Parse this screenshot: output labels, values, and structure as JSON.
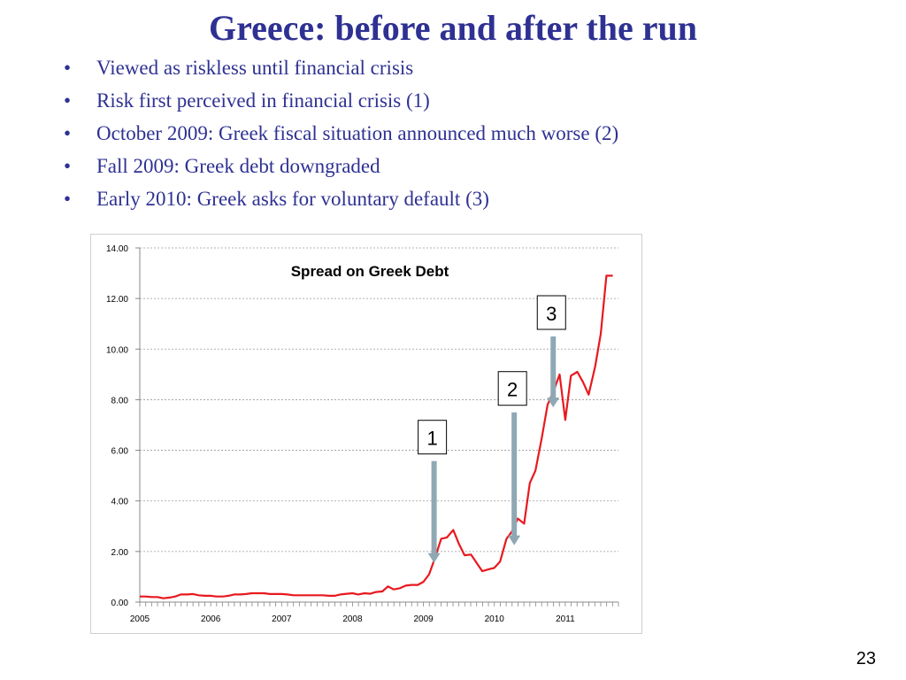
{
  "slide": {
    "title": "Greece: before and after the run",
    "bullets": [
      "Viewed as riskless until financial crisis",
      "Risk first perceived in financial crisis (1)",
      "October 2009: Greek fiscal situation announced much worse (2)",
      "Fall 2009: Greek debt downgraded",
      "Early 2010: Greek asks for voluntary default  (3)"
    ],
    "bullet_char": "•",
    "page_number": "23"
  },
  "colors": {
    "title": "#2e3192",
    "series": "#e8191e",
    "arrow": "#8fa8b4",
    "grid": "#9a9a9a"
  },
  "chart_data": {
    "type": "line",
    "title": "Spread on Greek Debt",
    "xlabel": "",
    "ylabel": "",
    "ylim": [
      0,
      14
    ],
    "yticks": [
      "0.00",
      "2.00",
      "4.00",
      "6.00",
      "8.00",
      "10.00",
      "12.00",
      "14.00"
    ],
    "xticks": [
      "2005",
      "2006",
      "2007",
      "2008",
      "2009",
      "2010",
      "2011"
    ],
    "xlim": [
      2005.0,
      2011.75
    ],
    "grid": "horizontal-dashed",
    "series": [
      {
        "x": [
          2005.0,
          2005.08,
          2005.17,
          2005.25,
          2005.33,
          2005.42,
          2005.5,
          2005.58,
          2005.67,
          2005.75,
          2005.83,
          2005.92,
          2006.0,
          2006.08,
          2006.17,
          2006.25,
          2006.33,
          2006.42,
          2006.5,
          2006.58,
          2006.67,
          2006.75,
          2006.83,
          2006.92,
          2007.0,
          2007.08,
          2007.17,
          2007.25,
          2007.33,
          2007.42,
          2007.5,
          2007.58,
          2007.67,
          2007.75,
          2007.83,
          2007.92,
          2008.0,
          2008.08,
          2008.17,
          2008.25,
          2008.33,
          2008.42,
          2008.5,
          2008.58,
          2008.67,
          2008.75,
          2008.83,
          2008.92,
          2009.0,
          2009.08,
          2009.17,
          2009.25,
          2009.33,
          2009.42,
          2009.5,
          2009.58,
          2009.67,
          2009.75,
          2009.83,
          2009.92,
          2010.0,
          2010.08,
          2010.17,
          2010.25,
          2010.33,
          2010.42,
          2010.5,
          2010.58,
          2010.67,
          2010.75,
          2010.83,
          2010.92,
          2011.0,
          2011.08,
          2011.17,
          2011.25,
          2011.33,
          2011.42,
          2011.5,
          2011.58,
          2011.67
        ],
        "values": [
          0.22,
          0.22,
          0.2,
          0.2,
          0.15,
          0.18,
          0.22,
          0.3,
          0.3,
          0.32,
          0.27,
          0.25,
          0.25,
          0.22,
          0.22,
          0.25,
          0.3,
          0.3,
          0.32,
          0.35,
          0.35,
          0.35,
          0.32,
          0.32,
          0.32,
          0.3,
          0.27,
          0.27,
          0.27,
          0.27,
          0.27,
          0.27,
          0.25,
          0.25,
          0.3,
          0.33,
          0.35,
          0.3,
          0.35,
          0.33,
          0.4,
          0.42,
          0.62,
          0.5,
          0.55,
          0.65,
          0.68,
          0.68,
          0.8,
          1.1,
          1.8,
          2.5,
          2.55,
          2.85,
          2.3,
          1.85,
          1.88,
          1.55,
          1.22,
          1.3,
          1.35,
          1.6,
          2.5,
          2.8,
          3.3,
          3.1,
          4.7,
          5.2,
          6.5,
          7.8,
          8.3,
          9.0,
          7.2,
          8.95,
          9.1,
          8.7,
          8.2,
          9.3,
          10.6,
          12.9,
          12.9
        ]
      }
    ],
    "annotations": [
      {
        "label": "1",
        "x": 2009.15,
        "y": 1.55
      },
      {
        "label": "2",
        "x": 2010.28,
        "y": 2.25
      },
      {
        "label": "3",
        "x": 2010.83,
        "y": 7.7
      }
    ]
  }
}
